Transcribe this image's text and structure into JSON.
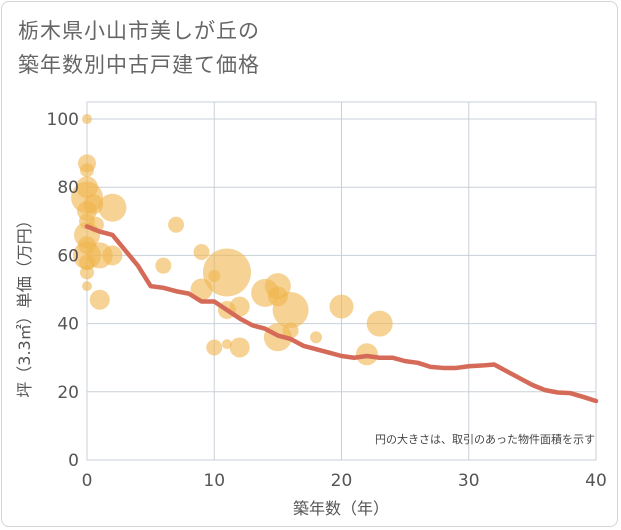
{
  "title_lines": [
    "栃木県小山市美しが丘の",
    "築年数別中古戸建て価格"
  ],
  "chart_data": {
    "type": "scatter",
    "title": "栃木県小山市美しが丘の 築年数別中古戸建て価格",
    "xlabel": "築年数（年）",
    "ylabel": "坪（3.3㎡）単価（万円）",
    "xlim": [
      0,
      40
    ],
    "ylim": [
      0,
      105
    ],
    "xticks": [
      0,
      10,
      20,
      30,
      40
    ],
    "yticks": [
      0,
      20,
      40,
      60,
      80,
      100
    ],
    "grid": true,
    "note": "円の大きさは、取引のあった物件面積を示す",
    "colors": {
      "bubble": "#f0b64f",
      "line": "#d46a57",
      "grid": "#c9d0d8"
    },
    "series": [
      {
        "kind": "bubble",
        "points": [
          {
            "x": 0,
            "y": 100,
            "s": 5
          },
          {
            "x": 0,
            "y": 87,
            "s": 9
          },
          {
            "x": 0,
            "y": 85,
            "s": 7
          },
          {
            "x": 0,
            "y": 80,
            "s": 11
          },
          {
            "x": 0,
            "y": 77,
            "s": 16
          },
          {
            "x": 0,
            "y": 73,
            "s": 10
          },
          {
            "x": 0,
            "y": 70,
            "s": 8
          },
          {
            "x": 0,
            "y": 66,
            "s": 13
          },
          {
            "x": 0,
            "y": 63,
            "s": 9
          },
          {
            "x": 0,
            "y": 60,
            "s": 14
          },
          {
            "x": 0,
            "y": 58,
            "s": 8
          },
          {
            "x": 0,
            "y": 55,
            "s": 7
          },
          {
            "x": 0,
            "y": 51,
            "s": 5
          },
          {
            "x": 0.5,
            "y": 75,
            "s": 10
          },
          {
            "x": 0.7,
            "y": 69,
            "s": 8
          },
          {
            "x": 1,
            "y": 60,
            "s": 13
          },
          {
            "x": 1,
            "y": 47,
            "s": 10
          },
          {
            "x": 2,
            "y": 74,
            "s": 14
          },
          {
            "x": 2,
            "y": 60,
            "s": 10
          },
          {
            "x": 6,
            "y": 57,
            "s": 8
          },
          {
            "x": 7,
            "y": 69,
            "s": 8
          },
          {
            "x": 9,
            "y": 61,
            "s": 8
          },
          {
            "x": 9,
            "y": 50,
            "s": 11
          },
          {
            "x": 10,
            "y": 54,
            "s": 6
          },
          {
            "x": 10,
            "y": 33,
            "s": 8
          },
          {
            "x": 11,
            "y": 55,
            "s": 24
          },
          {
            "x": 11,
            "y": 44,
            "s": 9
          },
          {
            "x": 11,
            "y": 34,
            "s": 5
          },
          {
            "x": 12,
            "y": 45,
            "s": 10
          },
          {
            "x": 12,
            "y": 33,
            "s": 10
          },
          {
            "x": 14,
            "y": 49,
            "s": 14
          },
          {
            "x": 15,
            "y": 51,
            "s": 13
          },
          {
            "x": 15,
            "y": 48,
            "s": 10
          },
          {
            "x": 15,
            "y": 36,
            "s": 14
          },
          {
            "x": 16,
            "y": 44,
            "s": 18
          },
          {
            "x": 16,
            "y": 38,
            "s": 8
          },
          {
            "x": 18,
            "y": 36,
            "s": 6
          },
          {
            "x": 20,
            "y": 45,
            "s": 12
          },
          {
            "x": 22,
            "y": 31,
            "s": 11
          },
          {
            "x": 23,
            "y": 40,
            "s": 13
          }
        ]
      },
      {
        "kind": "line",
        "x": [
          0,
          1,
          2,
          3,
          4,
          5,
          6,
          7,
          8,
          9,
          10,
          11,
          12,
          13,
          14,
          15,
          16,
          17,
          18,
          19,
          20,
          21,
          22,
          23,
          24,
          25,
          26,
          27,
          28,
          29,
          30,
          31,
          32,
          33,
          34,
          35,
          36,
          37,
          38,
          39,
          40
        ],
        "values": [
          68.5,
          67,
          66,
          61.5,
          57,
          51,
          50.5,
          49.5,
          48.8,
          46.5,
          46.5,
          44,
          41.5,
          39.5,
          38.5,
          36.5,
          35.5,
          33.5,
          32.5,
          31.5,
          30.5,
          30,
          30.5,
          30,
          30,
          29,
          28.5,
          27.3,
          27,
          27,
          27.5,
          27.7,
          28,
          26,
          24,
          22,
          20.5,
          19.8,
          19.6,
          18.5,
          17.3
        ]
      }
    ]
  }
}
